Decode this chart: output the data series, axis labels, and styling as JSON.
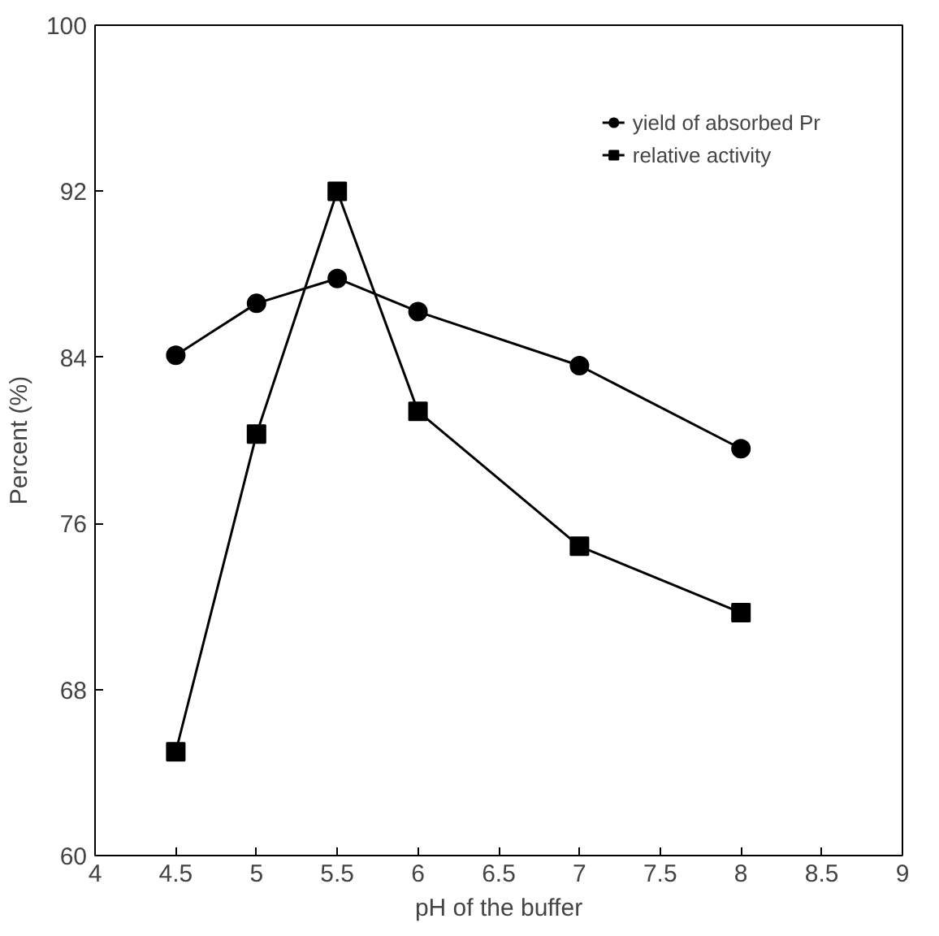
{
  "chart_data": {
    "type": "line",
    "xlabel": "pH of the buffer",
    "ylabel": "Percent (%)",
    "x": [
      4.5,
      5,
      5.5,
      6,
      7,
      8
    ],
    "series": [
      {
        "name": "yield of absorbed Pr",
        "color": "#000000",
        "marker": "circle",
        "values": [
          84.1,
          86.6,
          87.8,
          86.2,
          83.6,
          79.6
        ]
      },
      {
        "name": "relative activity",
        "color": "#000000",
        "marker": "square",
        "values": [
          65.0,
          80.3,
          92.0,
          81.4,
          74.9,
          71.7
        ]
      }
    ],
    "xlim": [
      4,
      9
    ],
    "xticks": [
      4,
      4.5,
      5,
      5.5,
      6,
      6.5,
      7,
      7.5,
      8,
      8.5,
      9
    ],
    "ylim": [
      60,
      100
    ],
    "yticks": [
      60,
      68,
      76,
      84,
      92,
      100
    ],
    "grid": false,
    "legend": "top right",
    "line_style": "solid"
  }
}
